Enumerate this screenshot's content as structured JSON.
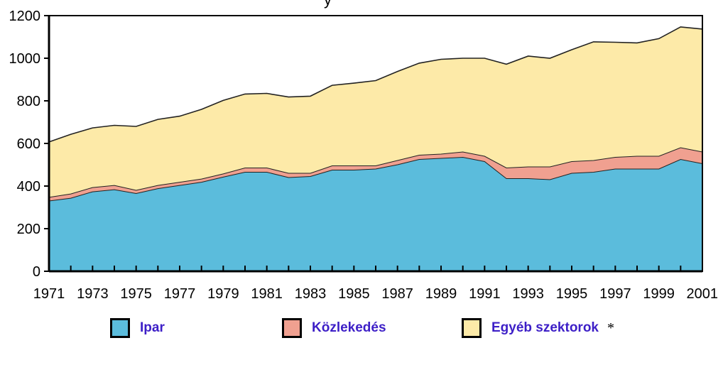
{
  "chart_data": {
    "type": "area",
    "stacked": true,
    "title_fragment": "y",
    "x": [
      1971,
      1972,
      1973,
      1974,
      1975,
      1976,
      1977,
      1978,
      1979,
      1980,
      1981,
      1982,
      1983,
      1984,
      1985,
      1986,
      1987,
      1988,
      1989,
      1990,
      1991,
      1992,
      1993,
      1994,
      1995,
      1996,
      1997,
      1998,
      1999,
      2000,
      2001
    ],
    "x_tick_labels": [
      "1971",
      "1973",
      "1975",
      "1977",
      "1979",
      "1981",
      "1983",
      "1985",
      "1987",
      "1989",
      "1991",
      "1993",
      "1995",
      "1997",
      "1999",
      "2001"
    ],
    "y_tick_labels": [
      "0",
      "200",
      "400",
      "600",
      "800",
      "1000",
      "1200"
    ],
    "ylim": [
      0,
      1200
    ],
    "grid": false,
    "legend_position": "bottom",
    "series": [
      {
        "name": "Ipar",
        "color": "#5bbcdc",
        "values": [
          330,
          343,
          373,
          383,
          365,
          388,
          403,
          418,
          442,
          465,
          465,
          440,
          445,
          475,
          475,
          480,
          500,
          525,
          530,
          535,
          515,
          435,
          435,
          430,
          460,
          465,
          480,
          480,
          480,
          525,
          505
        ]
      },
      {
        "name": "Közlekedés",
        "color": "#f0a090",
        "values": [
          17,
          20,
          20,
          20,
          15,
          15,
          15,
          15,
          15,
          20,
          20,
          20,
          15,
          20,
          20,
          15,
          20,
          20,
          20,
          25,
          25,
          50,
          55,
          60,
          55,
          55,
          55,
          60,
          60,
          55,
          55
        ]
      },
      {
        "name": "Egyéb szektorok",
        "color": "#fdeaa8",
        "values": [
          260,
          280,
          280,
          282,
          300,
          310,
          310,
          327,
          345,
          347,
          350,
          358,
          362,
          378,
          388,
          400,
          418,
          432,
          445,
          440,
          460,
          487,
          520,
          510,
          525,
          557,
          540,
          532,
          552,
          567,
          577
        ]
      }
    ],
    "legend_note_mark": "*"
  }
}
